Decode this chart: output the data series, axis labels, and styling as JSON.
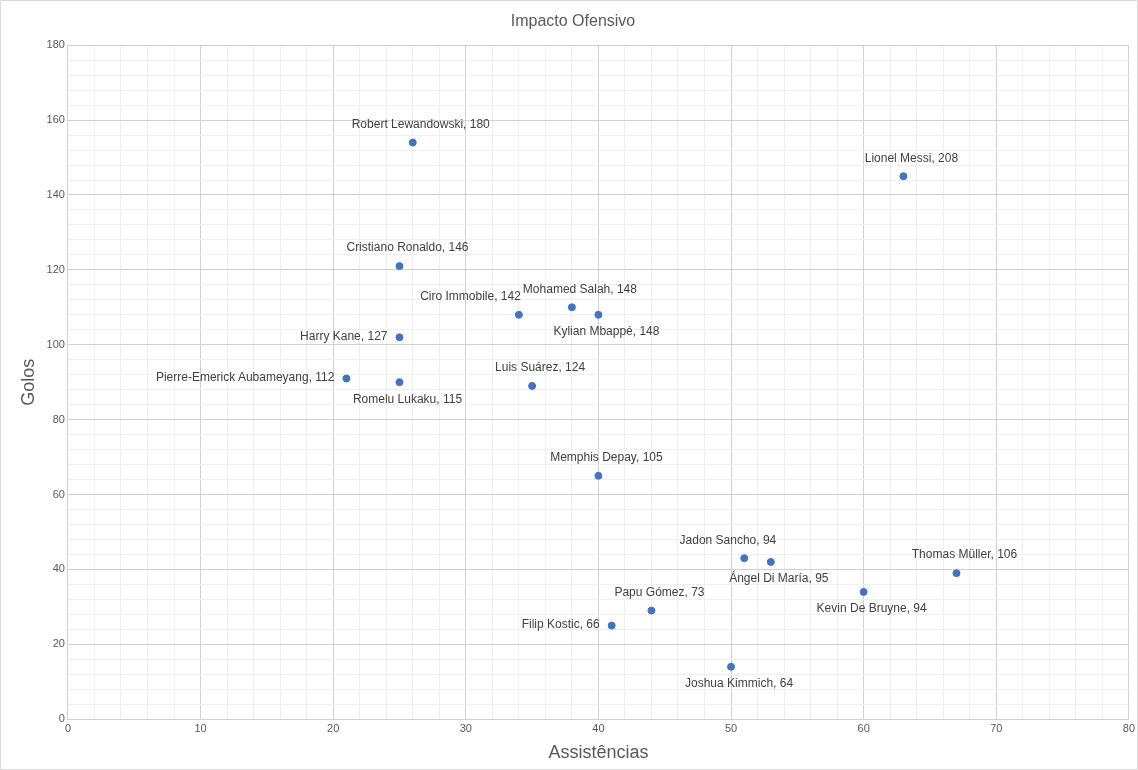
{
  "chart_data": {
    "type": "scatter",
    "title": "Impacto Ofensivo",
    "xlabel": "Assistências",
    "ylabel": "Golos",
    "x": [
      26,
      63,
      25,
      34,
      38,
      40,
      25,
      21,
      25,
      35,
      40,
      51,
      53,
      67,
      60,
      44,
      41,
      50
    ],
    "values": [
      154,
      145,
      121,
      108,
      110,
      108,
      102,
      91,
      90,
      89,
      65,
      43,
      42,
      39,
      34,
      29,
      25,
      14
    ],
    "color": "#4472c4",
    "marker": "circle",
    "grid": true,
    "legend": false,
    "xlim": [
      0,
      80
    ],
    "ylim": [
      0,
      180
    ],
    "xticks": [
      0,
      {
        "value": 2,
        "label": null
      },
      {
        "value": 4,
        "label": null
      },
      {
        "value": 6,
        "label": null
      },
      {
        "value": 8,
        "label": null
      },
      10,
      {
        "value": 12,
        "label": null
      },
      {
        "value": 14,
        "label": null
      },
      {
        "value": 16,
        "label": null
      },
      {
        "value": 18,
        "label": null
      },
      20,
      {
        "value": 22,
        "label": null
      },
      {
        "value": 24,
        "label": null
      },
      {
        "value": 26,
        "label": null
      },
      {
        "value": 28,
        "label": null
      },
      30,
      {
        "value": 32,
        "label": null
      },
      {
        "value": 34,
        "label": null
      },
      {
        "value": 36,
        "label": null
      },
      {
        "value": 38,
        "label": null
      },
      40,
      {
        "value": 42,
        "label": null
      },
      {
        "value": 44,
        "label": null
      },
      {
        "value": 46,
        "label": null
      },
      {
        "value": 48,
        "label": null
      },
      50,
      {
        "value": 52,
        "label": null
      },
      {
        "value": 54,
        "label": null
      },
      {
        "value": 56,
        "label": null
      },
      {
        "value": 58,
        "label": null
      },
      60,
      {
        "value": 62,
        "label": null
      },
      {
        "value": 64,
        "label": null
      },
      {
        "value": 66,
        "label": null
      },
      {
        "value": 68,
        "label": null
      },
      70,
      {
        "value": 72,
        "label": null
      },
      {
        "value": 74,
        "label": null
      },
      {
        "value": 76,
        "label": null
      },
      {
        "value": 78,
        "label": null
      },
      80
    ],
    "yticks": [
      0,
      {
        "value": 4,
        "label": null
      },
      {
        "value": 8,
        "label": null
      },
      {
        "value": 12,
        "label": null
      },
      {
        "value": 16,
        "label": null
      },
      20,
      {
        "value": 24,
        "label": null
      },
      {
        "value": 28,
        "label": null
      },
      {
        "value": 32,
        "label": null
      },
      {
        "value": 36,
        "label": null
      },
      40,
      {
        "value": 44,
        "label": null
      },
      {
        "value": 48,
        "label": null
      },
      {
        "value": 52,
        "label": null
      },
      {
        "value": 56,
        "label": null
      },
      60,
      {
        "value": 64,
        "label": null
      },
      {
        "value": 68,
        "label": null
      },
      {
        "value": 72,
        "label": null
      },
      {
        "value": 76,
        "label": null
      },
      80,
      {
        "value": 84,
        "label": null
      },
      {
        "value": 88,
        "label": null
      },
      {
        "value": 92,
        "label": null
      },
      {
        "value": 96,
        "label": null
      },
      100,
      {
        "value": 104,
        "label": null
      },
      {
        "value": 108,
        "label": null
      },
      {
        "value": 112,
        "label": null
      },
      {
        "value": 116,
        "label": null
      },
      120,
      {
        "value": 124,
        "label": null
      },
      {
        "value": 128,
        "label": null
      },
      {
        "value": 132,
        "label": null
      },
      {
        "value": 136,
        "label": null
      },
      140,
      {
        "value": 144,
        "label": null
      },
      {
        "value": 148,
        "label": null
      },
      {
        "value": 152,
        "label": null
      },
      {
        "value": 156,
        "label": null
      },
      160,
      {
        "value": 164,
        "label": null
      },
      {
        "value": 168,
        "label": null
      },
      {
        "value": 172,
        "label": null
      },
      {
        "value": 176,
        "label": null
      },
      180
    ],
    "annotations": [
      {
        "text": "Robert Lewandowski, 180",
        "x": 26,
        "y": 154
      },
      {
        "text": "Lionel Messi, 208",
        "x": 63,
        "y": 145
      },
      {
        "text": "Cristiano Ronaldo, 146",
        "x": 25,
        "y": 121
      },
      {
        "text": "Ciro Immobile, 142",
        "x": 34,
        "y": 108
      },
      {
        "text": "Mohamed Salah, 148",
        "x": 38,
        "y": 110
      },
      {
        "text": "Kylian Mbappé, 148",
        "x": 40,
        "y": 108
      },
      {
        "text": "Harry Kane, 127",
        "x": 25,
        "y": 102
      },
      {
        "text": "Pierre-Emerick Aubameyang, 112",
        "x": 21,
        "y": 91
      },
      {
        "text": "Romelu Lukaku, 115",
        "x": 25,
        "y": 90
      },
      {
        "text": "Luis Suárez, 124",
        "x": 35,
        "y": 89
      },
      {
        "text": "Memphis Depay, 105",
        "x": 40,
        "y": 65
      },
      {
        "text": "Jadon Sancho, 94",
        "x": 51,
        "y": 43
      },
      {
        "text": "Ángel Di María, 95",
        "x": 53,
        "y": 42
      },
      {
        "text": "Thomas Müller, 106",
        "x": 67,
        "y": 39
      },
      {
        "text": "Kevin De Bruyne, 94",
        "x": 60,
        "y": 34
      },
      {
        "text": "Papu Gómez, 73",
        "x": 44,
        "y": 29
      },
      {
        "text": "Filip Kostic, 66",
        "x": 41,
        "y": 25
      },
      {
        "text": "Joshua Kimmich, 64",
        "x": 50,
        "y": 14
      }
    ]
  }
}
